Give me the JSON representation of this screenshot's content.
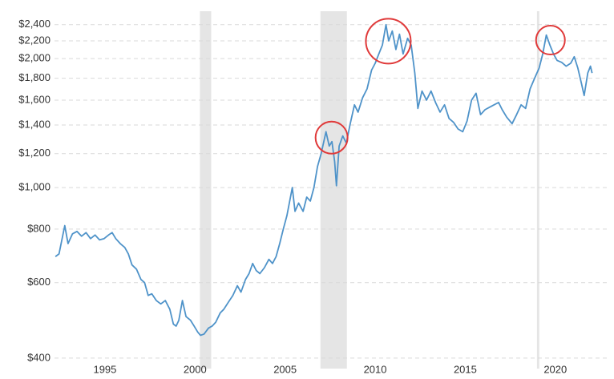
{
  "chart_data": {
    "type": "line",
    "log_scale": true,
    "grid": true,
    "color": "#4f93c9",
    "shade_color": "#e5e5e5",
    "highlight_color": "#e03a3a",
    "xlim": [
      1992.2,
      2022.1
    ],
    "xticks": [
      1995,
      2000,
      2005,
      2010,
      2015,
      2020
    ],
    "ylim": [
      378,
      2580
    ],
    "yticks": [
      {
        "value": 400,
        "label": "$400"
      },
      {
        "value": 600,
        "label": "$600"
      },
      {
        "value": 800,
        "label": "$800"
      },
      {
        "value": 1000,
        "label": "$1,000"
      },
      {
        "value": 1200,
        "label": "$1,200"
      },
      {
        "value": 1400,
        "label": "$1,400"
      },
      {
        "value": 1600,
        "label": "$1,600"
      },
      {
        "value": 1800,
        "label": "$1,800"
      },
      {
        "value": 2000,
        "label": "$2,000"
      },
      {
        "value": 2200,
        "label": "$2,200"
      },
      {
        "value": 2400,
        "label": "$2,400"
      }
    ],
    "shaded_regions": [
      [
        2000.27,
        2000.9
      ],
      [
        2006.96,
        2008.43
      ],
      [
        2018.98,
        2019.11
      ]
    ],
    "highlights": [
      {
        "x": 2007.58,
        "y": 1308
      },
      {
        "x": 2010.73,
        "y": 2196
      },
      {
        "x": 2019.73,
        "y": 2209
      }
    ],
    "x": [
      1992.25,
      1992.45,
      1992.65,
      1992.77,
      1992.95,
      1993.2,
      1993.45,
      1993.7,
      1993.95,
      1994.2,
      1994.45,
      1994.7,
      1994.95,
      1995.2,
      1995.4,
      1995.6,
      1995.85,
      1996.1,
      1996.3,
      1996.5,
      1996.75,
      1997.0,
      1997.2,
      1997.4,
      1997.6,
      1997.85,
      1998.1,
      1998.35,
      1998.6,
      1998.8,
      1998.95,
      1999.1,
      1999.3,
      1999.5,
      1999.75,
      1999.95,
      2000.15,
      2000.3,
      2000.5,
      2000.75,
      2000.95,
      2001.15,
      2001.4,
      2001.6,
      2001.85,
      2002.1,
      2002.35,
      2002.55,
      2002.8,
      2003.0,
      2003.2,
      2003.4,
      2003.6,
      2003.85,
      2004.1,
      2004.3,
      2004.5,
      2004.7,
      2004.9,
      2005.1,
      2005.4,
      2005.55,
      2005.75,
      2006.0,
      2006.2,
      2006.4,
      2006.6,
      2006.8,
      2007.0,
      2007.27,
      2007.45,
      2007.6,
      2007.75,
      2007.85,
      2008.0,
      2008.2,
      2008.4,
      2008.6,
      2008.85,
      2009.05,
      2009.3,
      2009.55,
      2009.8,
      2010.0,
      2010.2,
      2010.4,
      2010.6,
      2010.75,
      2010.95,
      2011.15,
      2011.35,
      2011.55,
      2011.8,
      2012.0,
      2012.2,
      2012.37,
      2012.6,
      2012.85,
      2013.1,
      2013.35,
      2013.6,
      2013.85,
      2014.1,
      2014.35,
      2014.6,
      2014.86,
      2015.1,
      2015.35,
      2015.6,
      2015.85,
      2016.1,
      2016.35,
      2016.6,
      2016.85,
      2017.05,
      2017.3,
      2017.6,
      2017.85,
      2018.1,
      2018.35,
      2018.6,
      2018.85,
      2019.1,
      2019.3,
      2019.5,
      2019.7,
      2019.9,
      2020.1,
      2020.35,
      2020.6,
      2020.85,
      2021.05,
      2021.25,
      2021.45,
      2021.6,
      2021.8,
      2021.95,
      2022.04
    ],
    "values": [
      690,
      700,
      770,
      815,
      740,
      780,
      790,
      770,
      785,
      760,
      775,
      755,
      760,
      775,
      785,
      760,
      740,
      725,
      700,
      660,
      645,
      610,
      600,
      560,
      565,
      545,
      535,
      545,
      520,
      480,
      475,
      490,
      545,
      500,
      490,
      475,
      460,
      452,
      455,
      470,
      475,
      485,
      510,
      520,
      540,
      560,
      590,
      570,
      610,
      630,
      665,
      640,
      630,
      650,
      680,
      665,
      690,
      740,
      800,
      860,
      1000,
      880,
      920,
      880,
      950,
      930,
      1000,
      1120,
      1200,
      1350,
      1250,
      1280,
      1150,
      1010,
      1250,
      1320,
      1270,
      1400,
      1560,
      1500,
      1620,
      1700,
      1880,
      1950,
      2050,
      2150,
      2400,
      2200,
      2320,
      2100,
      2280,
      2050,
      2230,
      2150,
      1850,
      1530,
      1680,
      1600,
      1680,
      1580,
      1500,
      1560,
      1450,
      1420,
      1370,
      1350,
      1430,
      1600,
      1660,
      1480,
      1520,
      1540,
      1560,
      1580,
      1520,
      1460,
      1410,
      1480,
      1560,
      1530,
      1700,
      1800,
      1900,
      2050,
      2270,
      2150,
      2050,
      1980,
      1960,
      1920,
      1950,
      2020,
      1900,
      1750,
      1640,
      1850,
      1920,
      1850
    ]
  }
}
